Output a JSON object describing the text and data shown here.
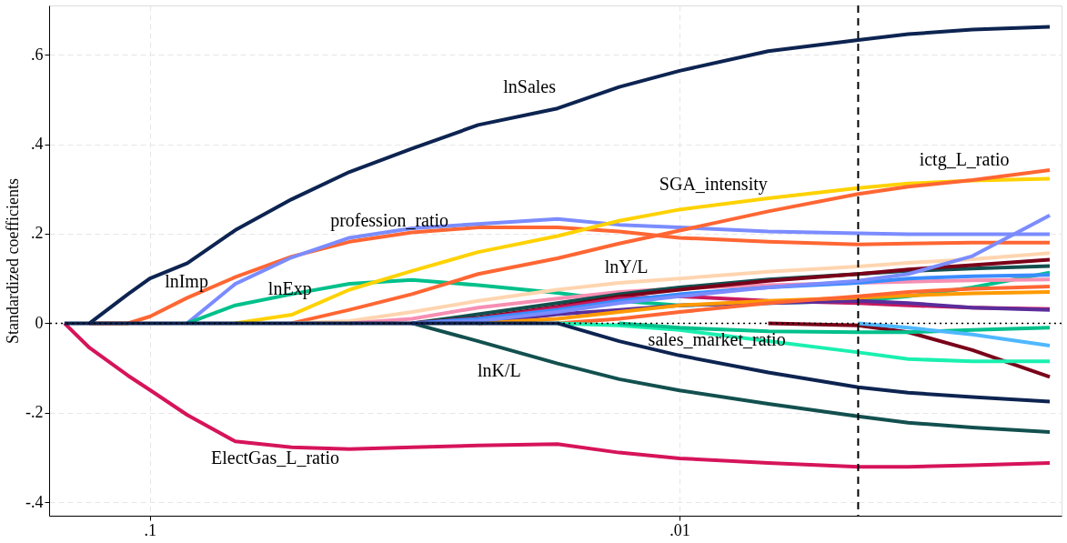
{
  "chart_data": {
    "type": "line",
    "ylabel": "Standardized coefficients",
    "log": "x",
    "grid": true,
    "legend": false,
    "line_style": "solid",
    "marker": "none",
    "x": [
      0.145,
      0.13,
      0.11,
      0.1,
      0.085,
      0.069,
      0.054,
      0.042,
      0.032,
      0.024,
      0.017,
      0.013,
      0.01,
      0.0068,
      0.0046,
      0.0037,
      0.0028,
      0.002
    ],
    "xlim": [
      0.155,
      0.0019
    ],
    "xticks": [
      {
        "value": 0.1,
        "label": ".1"
      },
      {
        "value": 0.01,
        "label": ".01"
      }
    ],
    "ylim": [
      -0.43,
      0.71
    ],
    "yticks": [
      {
        "value": -0.4,
        "label": "-.4"
      },
      {
        "value": -0.2,
        "label": "-.2"
      },
      {
        "value": 0,
        "label": "0"
      },
      {
        "value": 0.2,
        "label": ".2"
      },
      {
        "value": 0.4,
        "label": ".4"
      },
      {
        "value": 0.6,
        "label": ".6"
      }
    ],
    "ref_lines": [
      {
        "axis": "x",
        "value": 0.0046,
        "color": "#000000",
        "line_style": "dashed"
      },
      {
        "axis": "y",
        "value": 0,
        "color": "#000000",
        "line_style": "dotted"
      }
    ],
    "series": [
      {
        "name": "ElectGas_L_ratio",
        "color": "#d6145a",
        "values": [
          0,
          -0.055,
          -0.117,
          -0.149,
          -0.205,
          -0.264,
          -0.277,
          -0.281,
          -0.277,
          -0.273,
          -0.27,
          -0.289,
          -0.302,
          -0.312,
          -0.321,
          -0.321,
          -0.317,
          -0.312
        ]
      },
      {
        "name": "lnImp",
        "color": "#ff6633",
        "values": [
          null,
          0,
          0,
          0.015,
          0.057,
          0.103,
          0.149,
          0.182,
          0.203,
          0.214,
          0.214,
          0.205,
          0.191,
          0.182,
          0.176,
          0.178,
          0.18,
          0.18
        ]
      },
      {
        "name": "profession_ratio",
        "color": "#7b8cff",
        "values": [
          null,
          null,
          null,
          null,
          0,
          0.088,
          0.147,
          0.191,
          0.212,
          0.222,
          0.233,
          0.22,
          0.214,
          0.205,
          0.201,
          0.199,
          0.199,
          0.199
        ]
      },
      {
        "name": "lnExp",
        "color": "#00c08b",
        "values": [
          null,
          null,
          null,
          null,
          0,
          0.04,
          0.065,
          0.088,
          0.097,
          0.085,
          0.068,
          0.05,
          0.04,
          0.045,
          0.05,
          0.06,
          0.08,
          0.113
        ]
      },
      {
        "name": "SGA_intensity",
        "color": "#ffd200",
        "values": [
          null,
          null,
          null,
          null,
          null,
          0,
          0.019,
          0.075,
          0.117,
          0.159,
          0.195,
          0.229,
          0.254,
          0.279,
          0.302,
          0.312,
          0.319,
          0.323
        ]
      },
      {
        "name": "ictg_L_ratio",
        "color": "#ff6633",
        "values": [
          null,
          null,
          null,
          null,
          null,
          null,
          0,
          0.03,
          0.065,
          0.11,
          0.145,
          0.178,
          0.207,
          0.25,
          0.289,
          0.305,
          0.32,
          0.342
        ]
      },
      {
        "name": "lnY/L",
        "color": "#ffd5b0",
        "values": [
          null,
          null,
          null,
          null,
          null,
          null,
          0,
          0.005,
          0.025,
          0.05,
          0.075,
          0.09,
          0.1,
          0.115,
          0.127,
          0.135,
          0.143,
          0.157
        ]
      },
      {
        "color": "#f78fb3",
        "values": [
          null,
          null,
          null,
          null,
          null,
          null,
          null,
          0,
          0.01,
          0.035,
          0.055,
          0.07,
          0.078,
          0.085,
          0.09,
          0.093,
          0.096,
          0.098
        ]
      },
      {
        "name": "lnK/L",
        "color": "#12504f",
        "values": [
          null,
          null,
          null,
          null,
          null,
          null,
          null,
          null,
          0,
          -0.04,
          -0.09,
          -0.125,
          -0.15,
          -0.18,
          -0.208,
          -0.222,
          -0.233,
          -0.243
        ]
      },
      {
        "color": "#12504f",
        "values": [
          null,
          null,
          null,
          null,
          null,
          null,
          null,
          null,
          0,
          0.02,
          0.045,
          0.065,
          0.08,
          0.098,
          0.11,
          0.117,
          0.122,
          0.128
        ]
      },
      {
        "color": "#7a0019",
        "values": [
          null,
          null,
          null,
          null,
          null,
          null,
          null,
          null,
          0,
          0.012,
          0.037,
          0.06,
          0.075,
          0.095,
          0.11,
          0.12,
          0.13,
          0.142
        ]
      },
      {
        "color": "#7a0019",
        "values": [
          null,
          null,
          null,
          null,
          null,
          null,
          null,
          null,
          null,
          null,
          null,
          null,
          null,
          0,
          -0.005,
          -0.02,
          -0.06,
          -0.12
        ]
      },
      {
        "color": "#c8195e",
        "values": [
          null,
          null,
          null,
          null,
          null,
          null,
          null,
          null,
          0,
          0.01,
          0.035,
          0.055,
          0.06,
          0.05,
          0.045,
          0.04,
          0.035,
          0.032
        ]
      },
      {
        "color": "#3a8cff",
        "values": [
          null,
          null,
          null,
          null,
          null,
          null,
          null,
          null,
          0,
          0.01,
          0.03,
          0.05,
          0.065,
          0.08,
          0.09,
          0.1,
          0.105,
          0.108
        ]
      },
      {
        "color": "#5a2d9c",
        "values": [
          null,
          null,
          null,
          null,
          null,
          null,
          null,
          null,
          null,
          0,
          0.02,
          0.03,
          0.04,
          0.045,
          0.05,
          0.045,
          0.035,
          0.03
        ]
      },
      {
        "color": "#ff9a00",
        "values": [
          null,
          null,
          null,
          null,
          null,
          null,
          null,
          null,
          null,
          0,
          0.01,
          0.025,
          0.04,
          0.05,
          0.057,
          0.062,
          0.067,
          0.07
        ]
      },
      {
        "color": "#ff6633",
        "values": [
          null,
          null,
          null,
          null,
          null,
          null,
          null,
          null,
          null,
          null,
          0,
          0.01,
          0.025,
          0.045,
          0.06,
          0.07,
          0.077,
          0.082
        ]
      },
      {
        "name": "sales_market_ratio",
        "color": "#1af0b0",
        "values": [
          null,
          null,
          null,
          null,
          null,
          null,
          null,
          null,
          null,
          null,
          0,
          -0.005,
          -0.015,
          -0.04,
          -0.065,
          -0.08,
          -0.085,
          -0.085
        ]
      },
      {
        "color": "#00c08b",
        "values": [
          null,
          null,
          null,
          null,
          null,
          null,
          null,
          null,
          null,
          null,
          null,
          0,
          -0.01,
          -0.018,
          -0.02,
          -0.02,
          -0.015,
          -0.01
        ]
      },
      {
        "color": "#4fb8ff",
        "values": [
          null,
          null,
          null,
          null,
          null,
          null,
          null,
          null,
          null,
          null,
          null,
          null,
          null,
          null,
          0,
          -0.01,
          -0.025,
          -0.05
        ]
      },
      {
        "color": "#7b8cff",
        "values": [
          null,
          null,
          null,
          null,
          null,
          null,
          null,
          null,
          0,
          0.005,
          0.025,
          0.045,
          0.06,
          0.08,
          0.095,
          0.11,
          0.15,
          0.241
        ]
      },
      {
        "color": "#0d2451",
        "values": [
          null,
          0,
          0,
          0,
          0,
          0,
          0,
          0,
          0,
          0,
          0,
          -0.04,
          -0.072,
          -0.11,
          -0.143,
          -0.155,
          -0.165,
          -0.175
        ]
      },
      {
        "name": "lnSales",
        "color": "#0d2451",
        "values": [
          0,
          0,
          0.065,
          0.1,
          0.134,
          0.208,
          0.277,
          0.338,
          0.39,
          0.443,
          0.48,
          0.528,
          0.564,
          0.608,
          0.633,
          0.646,
          0.656,
          0.662
        ]
      }
    ]
  }
}
